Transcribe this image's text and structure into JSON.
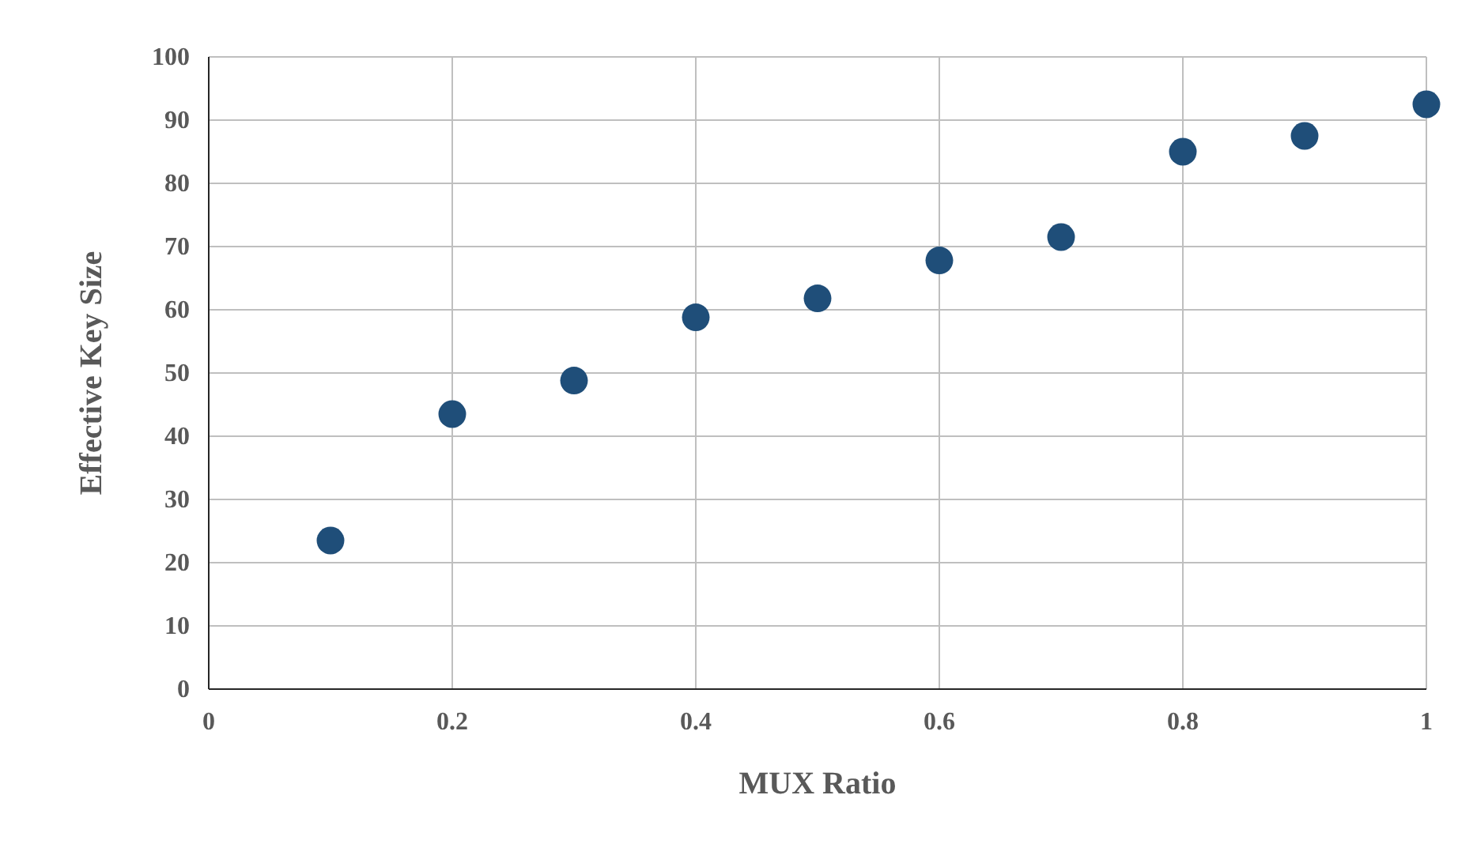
{
  "chart_data": {
    "type": "scatter",
    "xlabel": "MUX Ratio",
    "ylabel": "Effective Key Size",
    "x": [
      0.1,
      0.2,
      0.3,
      0.4,
      0.5,
      0.6,
      0.7,
      0.8,
      0.9,
      1.0
    ],
    "series": [
      {
        "color": "#1f4e79",
        "values": [
          23.5,
          43.5,
          48.8,
          58.8,
          61.8,
          67.8,
          71.5,
          85,
          87.5,
          92.5
        ]
      }
    ],
    "xlim": [
      0,
      1
    ],
    "xticks": [
      0,
      0.2,
      0.4,
      0.6,
      0.8,
      1
    ],
    "ylim": [
      0,
      100
    ],
    "yticks": [
      0,
      10,
      20,
      30,
      40,
      50,
      60,
      70,
      80,
      90,
      100
    ],
    "grid": true,
    "marker": "circle"
  }
}
